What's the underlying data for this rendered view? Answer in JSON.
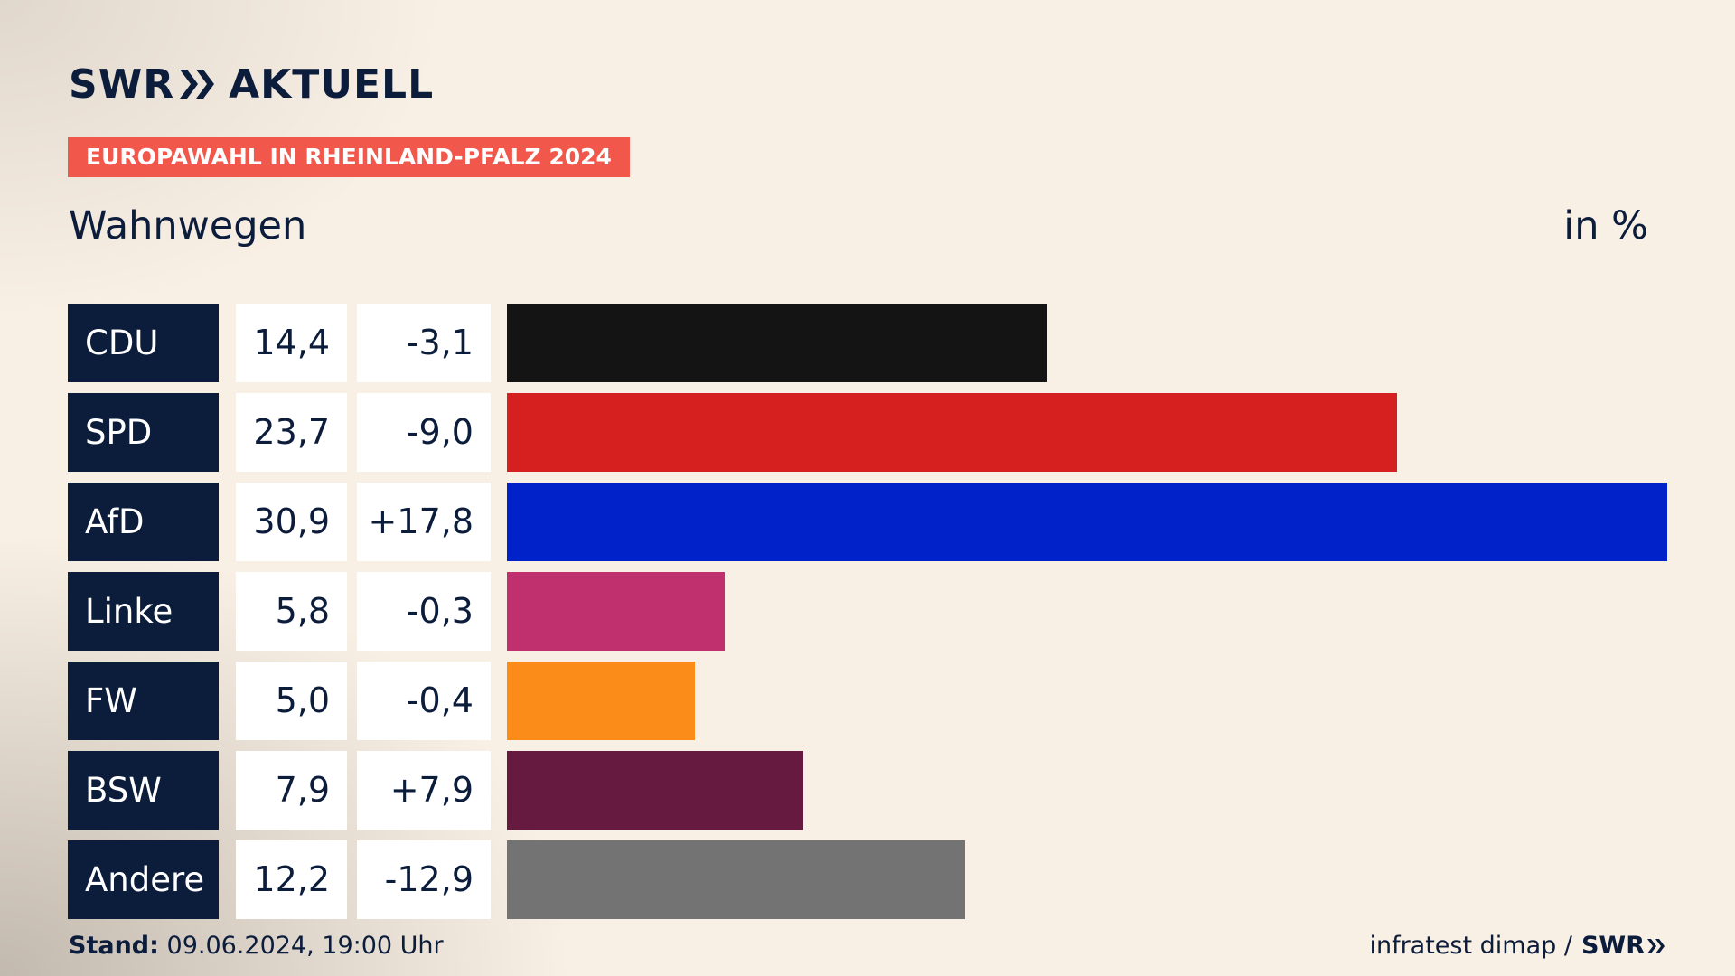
{
  "brand": {
    "logo_text_left": "SWR",
    "logo_text_right": "AKTUELL"
  },
  "header": {
    "badge": "EUROPAWAHL IN RHEINLAND-PFALZ 2024",
    "place": "Wahnwegen",
    "unit": "in %"
  },
  "colors": {
    "navy": "#0c1c3b",
    "badge": "#f1574a",
    "background": "#f8efe5"
  },
  "chart_data": {
    "type": "bar",
    "orientation": "horizontal",
    "categories": [
      "CDU",
      "SPD",
      "AfD",
      "Linke",
      "FW",
      "BSW",
      "Andere"
    ],
    "values": [
      14.4,
      23.7,
      30.9,
      5.8,
      5.0,
      7.9,
      12.2
    ],
    "value_labels": [
      "14,4",
      "23,7",
      "30,9",
      "5,8",
      "5,0",
      "7,9",
      "12,2"
    ],
    "change_labels": [
      "-3,1",
      "-9,0",
      "+17,8",
      "-0,3",
      "-0,4",
      "+7,9",
      "-12,9"
    ],
    "colors": [
      "#141414",
      "#d62020",
      "#0022c8",
      "#c0306e",
      "#fc8c1a",
      "#661a3f",
      "#737373"
    ],
    "xlim": [
      0,
      30.9
    ]
  },
  "footer": {
    "stand_label": "Stand:",
    "stand_value": "09.06.2024, 19:00 Uhr",
    "source": "infratest dimap /",
    "source_brand": "SWR"
  }
}
